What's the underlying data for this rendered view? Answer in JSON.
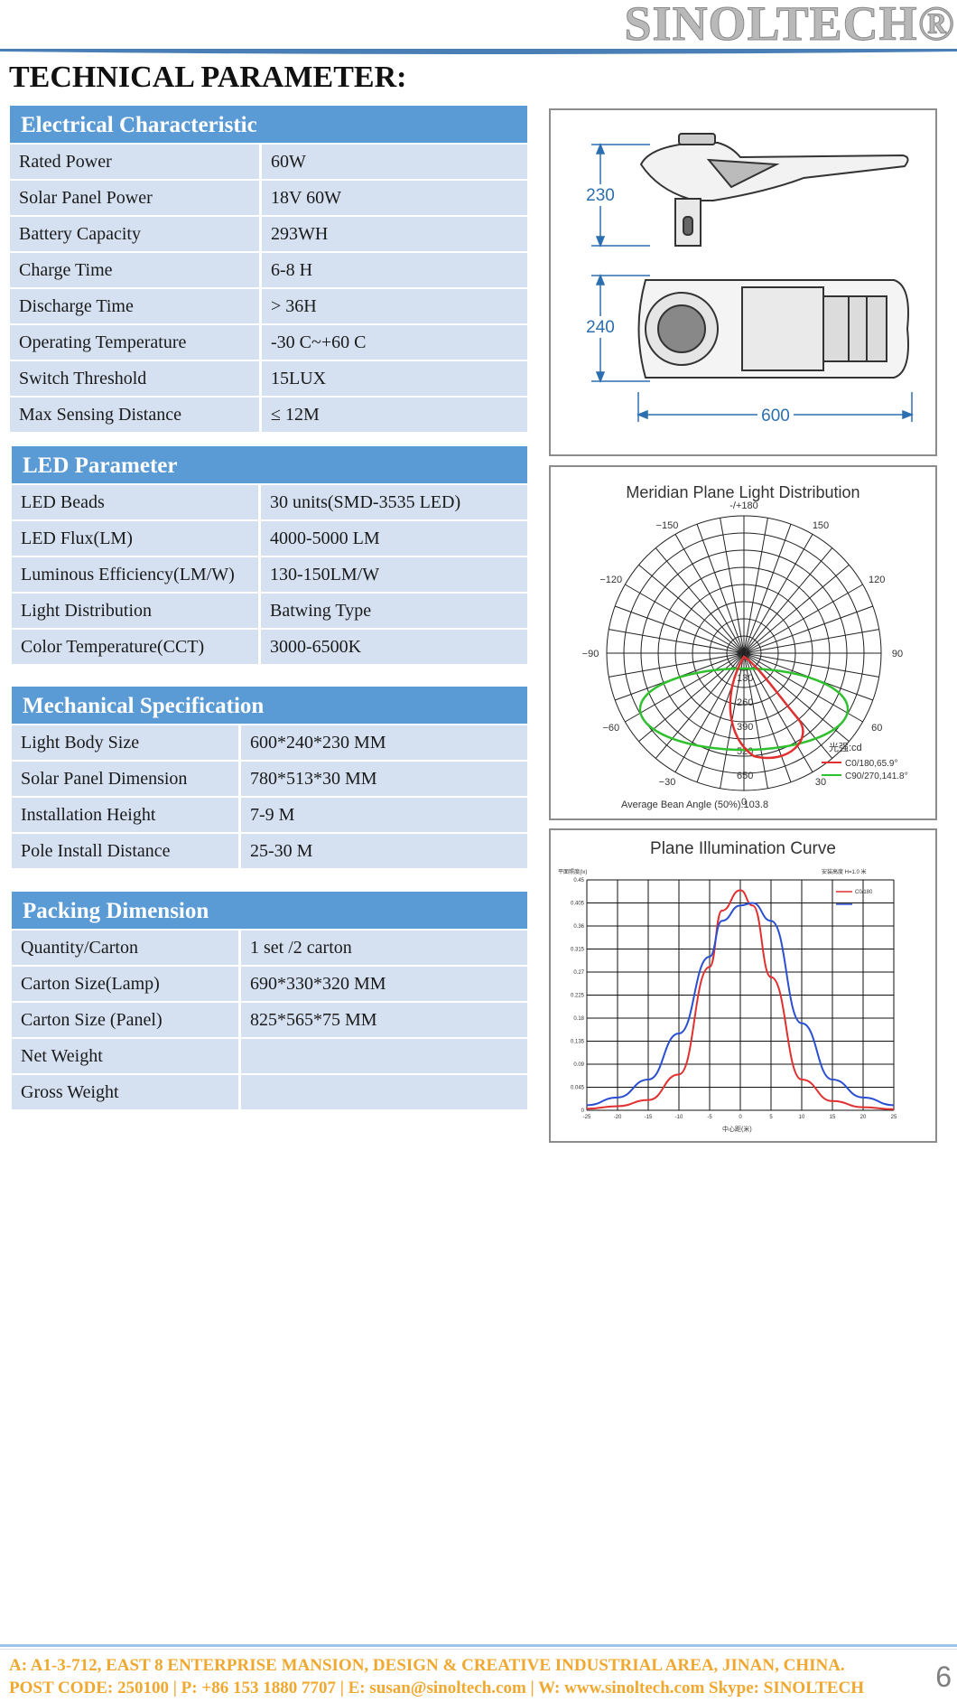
{
  "header": {
    "brand": "SINOLTECH®",
    "page_title": "TECHNICAL PARAMETER:"
  },
  "electrical": {
    "heading": "Electrical Characteristic",
    "rows": [
      {
        "k": "Rated Power",
        "v": "60W"
      },
      {
        "k": "Solar Panel Power",
        "v": "18V 60W"
      },
      {
        "k": "Battery Capacity",
        "v": "293WH"
      },
      {
        "k": "Charge Time",
        "v": "6-8 H"
      },
      {
        "k": "Discharge Time",
        "v": "> 36H"
      },
      {
        "k": "Operating Temperature",
        "v": "-30 C~+60 C"
      },
      {
        "k": "Switch Threshold",
        "v": "15LUX"
      },
      {
        "k": "Max Sensing Distance",
        "v": "≤ 12M"
      }
    ]
  },
  "led": {
    "heading": "LED Parameter",
    "rows": [
      {
        "k": "LED Beads",
        "v": "30 units(SMD-3535 LED)"
      },
      {
        "k": "LED Flux(LM)",
        "v": "4000-5000 LM"
      },
      {
        "k": "Luminous Efficiency(LM/W)",
        "v": "130-150LM/W"
      },
      {
        "k": "Light Distribution",
        "v": "Batwing Type"
      },
      {
        "k": "Color Temperature(CCT)",
        "v": "3000-6500K"
      }
    ]
  },
  "mechanical": {
    "heading": "Mechanical Specification",
    "rows": [
      {
        "k": "Light Body Size",
        "v": "600*240*230 MM"
      },
      {
        "k": "Solar Panel Dimension",
        "v": "780*513*30 MM"
      },
      {
        "k": "Installation Height",
        "v": "7-9 M"
      },
      {
        "k": "Pole Install Distance",
        "v": "25-30 M"
      }
    ]
  },
  "packing": {
    "heading": "Packing Dimension",
    "rows": [
      {
        "k": "Quantity/Carton",
        "v": "1 set /2 carton"
      },
      {
        "k": "Carton Size(Lamp)",
        "v": "690*330*320 MM"
      },
      {
        "k": "Carton Size (Panel)",
        "v": "825*565*75 MM"
      },
      {
        "k": "Net Weight",
        "v": ""
      },
      {
        "k": "Gross Weight",
        "v": ""
      }
    ]
  },
  "dimension_drawing": {
    "height": "230",
    "width": "240",
    "length": "600"
  },
  "polar_chart": {
    "title": "Meridian Plane Light Distribution",
    "angles": [
      "-/+180",
      "−150",
      "150",
      "−120",
      "120",
      "−90",
      "90",
      "−60",
      "60",
      "−30",
      "30",
      "0"
    ],
    "radial_labels": [
      "0.0",
      "130",
      "260",
      "390",
      "520",
      "650"
    ],
    "legend_unit": "光强:cd",
    "legend": [
      {
        "name": "C0/180,65.9°",
        "color": "#e03030"
      },
      {
        "name": "C90/270,141.8°",
        "color": "#30c030"
      }
    ],
    "footer": "Average Bean Angle (50%):103.8"
  },
  "chart_data": {
    "type": "line",
    "title": "Plane Illumination Curve",
    "xlabel": "中心距(米)",
    "ylabel": "平面照度(lx)",
    "note": "安装高度 H=1.0 米",
    "x": [
      -25,
      -20,
      -15,
      -10,
      -5,
      -3,
      0,
      2,
      5,
      10,
      15,
      20,
      25
    ],
    "xticks": [
      "-25",
      "-20",
      "-15",
      "-10",
      "-5",
      "0",
      "5",
      "10",
      "15",
      "20",
      "25"
    ],
    "yticks": [
      "0",
      "0.045",
      "0.09",
      "0.135",
      "0.18",
      "0.225",
      "0.27",
      "0.315",
      "0.36",
      "0.405",
      "0.45"
    ],
    "ylim": [
      0,
      0.45
    ],
    "xlim": [
      -25,
      25
    ],
    "series": [
      {
        "name": "C0/180",
        "color": "#e03030",
        "values": [
          0.003,
          0.008,
          0.02,
          0.07,
          0.28,
          0.39,
          0.43,
          0.4,
          0.26,
          0.06,
          0.018,
          0.006,
          0.002
        ]
      },
      {
        "name": "",
        "color": "#2a4fd0",
        "values": [
          0.01,
          0.025,
          0.06,
          0.15,
          0.3,
          0.37,
          0.4,
          0.405,
          0.37,
          0.17,
          0.06,
          0.025,
          0.01
        ]
      }
    ]
  },
  "footer": {
    "address": "A: A1-3-712, EAST 8 ENTERPRISE MANSION, DESIGN & CREATIVE INDUSTRIAL AREA, JINAN, CHINA.",
    "contact": "POST CODE: 250100  | P: +86 153 1880 7707 | E: susan@sinoltech.com | W: www.sinoltech.com  Skype: SINOLTECH",
    "page_number": "6"
  }
}
